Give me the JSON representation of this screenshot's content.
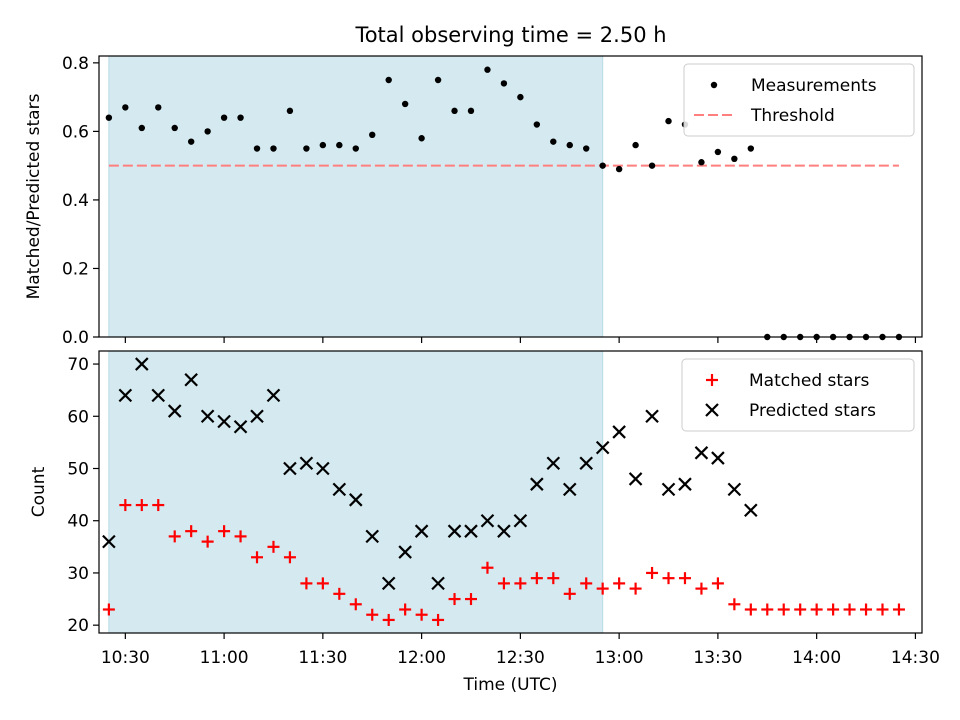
{
  "chart_data": [
    {
      "type": "scatter",
      "title": "Total observing time = 2.50 h",
      "ylabel": "Matched/Predicted stars",
      "xlabel": "",
      "xlim": [
        "10:22",
        "14:32"
      ],
      "ylim": [
        0,
        0.82
      ],
      "yticks": [
        0.0,
        0.2,
        0.4,
        0.6,
        0.8
      ],
      "ytick_labels": [
        "0.0",
        "0.2",
        "0.4",
        "0.6",
        "0.8"
      ],
      "shaded_span": [
        "10:25",
        "12:55"
      ],
      "shaded_color": "#d4eaf0",
      "legend_position": "upper right",
      "series": [
        {
          "name": "Measurements",
          "marker": "dot",
          "color": "#000000",
          "points": [
            [
              "10:25",
              0.64
            ],
            [
              "10:30",
              0.67
            ],
            [
              "10:35",
              0.61
            ],
            [
              "10:40",
              0.67
            ],
            [
              "10:45",
              0.61
            ],
            [
              "10:50",
              0.57
            ],
            [
              "10:55",
              0.6
            ],
            [
              "11:00",
              0.64
            ],
            [
              "11:05",
              0.64
            ],
            [
              "11:10",
              0.55
            ],
            [
              "11:15",
              0.55
            ],
            [
              "11:20",
              0.66
            ],
            [
              "11:25",
              0.55
            ],
            [
              "11:30",
              0.56
            ],
            [
              "11:35",
              0.56
            ],
            [
              "11:40",
              0.55
            ],
            [
              "11:45",
              0.59
            ],
            [
              "11:50",
              0.75
            ],
            [
              "11:55",
              0.68
            ],
            [
              "12:00",
              0.58
            ],
            [
              "12:05",
              0.75
            ],
            [
              "12:10",
              0.66
            ],
            [
              "12:15",
              0.66
            ],
            [
              "12:20",
              0.78
            ],
            [
              "12:25",
              0.74
            ],
            [
              "12:30",
              0.7
            ],
            [
              "12:35",
              0.62
            ],
            [
              "12:40",
              0.57
            ],
            [
              "12:45",
              0.56
            ],
            [
              "12:50",
              0.55
            ],
            [
              "12:55",
              0.5
            ],
            [
              "13:00",
              0.49
            ],
            [
              "13:05",
              0.56
            ],
            [
              "13:10",
              0.5
            ],
            [
              "13:15",
              0.63
            ],
            [
              "13:20",
              0.62
            ],
            [
              "13:25",
              0.51
            ],
            [
              "13:30",
              0.54
            ],
            [
              "13:35",
              0.52
            ],
            [
              "13:40",
              0.55
            ],
            [
              "13:45",
              0.0
            ],
            [
              "13:50",
              0.0
            ],
            [
              "13:55",
              0.0
            ],
            [
              "14:00",
              0.0
            ],
            [
              "14:05",
              0.0
            ],
            [
              "14:10",
              0.0
            ],
            [
              "14:15",
              0.0
            ],
            [
              "14:20",
              0.0
            ],
            [
              "14:25",
              0.0
            ]
          ]
        },
        {
          "name": "Threshold",
          "marker": "dashed-line",
          "color": "#ff7f7f",
          "points": [
            [
              "10:25",
              0.5
            ],
            [
              "14:25",
              0.5
            ]
          ]
        }
      ]
    },
    {
      "type": "scatter",
      "title": "",
      "xlabel": "Time (UTC)",
      "ylabel": "Count",
      "xlim": [
        "10:22",
        "14:32"
      ],
      "ylim": [
        18.5,
        72.5
      ],
      "xtick_labels": [
        "10:30",
        "11:00",
        "11:30",
        "12:00",
        "12:30",
        "13:00",
        "13:30",
        "14:00",
        "14:30"
      ],
      "yticks": [
        20,
        30,
        40,
        50,
        60,
        70
      ],
      "ytick_labels": [
        "20",
        "30",
        "40",
        "50",
        "60",
        "70"
      ],
      "shaded_span": [
        "10:25",
        "12:55"
      ],
      "shaded_color": "#d4eaf0",
      "legend_position": "upper right",
      "series": [
        {
          "name": "Matched stars",
          "marker": "plus",
          "color": "#ff0000",
          "points": [
            [
              "10:25",
              23
            ],
            [
              "10:30",
              43
            ],
            [
              "10:35",
              43
            ],
            [
              "10:40",
              43
            ],
            [
              "10:45",
              37
            ],
            [
              "10:50",
              38
            ],
            [
              "10:55",
              36
            ],
            [
              "11:00",
              38
            ],
            [
              "11:05",
              37
            ],
            [
              "11:10",
              33
            ],
            [
              "11:15",
              35
            ],
            [
              "11:20",
              33
            ],
            [
              "11:25",
              28
            ],
            [
              "11:30",
              28
            ],
            [
              "11:35",
              26
            ],
            [
              "11:40",
              24
            ],
            [
              "11:45",
              22
            ],
            [
              "11:50",
              21
            ],
            [
              "11:55",
              23
            ],
            [
              "12:00",
              22
            ],
            [
              "12:05",
              21
            ],
            [
              "12:10",
              25
            ],
            [
              "12:15",
              25
            ],
            [
              "12:20",
              31
            ],
            [
              "12:25",
              28
            ],
            [
              "12:30",
              28
            ],
            [
              "12:35",
              29
            ],
            [
              "12:40",
              29
            ],
            [
              "12:45",
              26
            ],
            [
              "12:50",
              28
            ],
            [
              "12:55",
              27
            ],
            [
              "13:00",
              28
            ],
            [
              "13:05",
              27
            ],
            [
              "13:10",
              30
            ],
            [
              "13:15",
              29
            ],
            [
              "13:20",
              29
            ],
            [
              "13:25",
              27
            ],
            [
              "13:30",
              28
            ],
            [
              "13:35",
              24
            ],
            [
              "13:40",
              23
            ],
            [
              "13:45",
              23
            ],
            [
              "13:50",
              23
            ],
            [
              "13:55",
              23
            ],
            [
              "14:00",
              23
            ],
            [
              "14:05",
              23
            ],
            [
              "14:10",
              23
            ],
            [
              "14:15",
              23
            ],
            [
              "14:20",
              23
            ],
            [
              "14:25",
              23
            ]
          ]
        },
        {
          "name": "Predicted stars",
          "marker": "x",
          "color": "#000000",
          "points": [
            [
              "10:25",
              36
            ],
            [
              "10:30",
              64
            ],
            [
              "10:35",
              70
            ],
            [
              "10:40",
              64
            ],
            [
              "10:45",
              61
            ],
            [
              "10:50",
              67
            ],
            [
              "10:55",
              60
            ],
            [
              "11:00",
              59
            ],
            [
              "11:05",
              58
            ],
            [
              "11:10",
              60
            ],
            [
              "11:15",
              64
            ],
            [
              "11:20",
              50
            ],
            [
              "11:25",
              51
            ],
            [
              "11:30",
              50
            ],
            [
              "11:35",
              46
            ],
            [
              "11:40",
              44
            ],
            [
              "11:45",
              37
            ],
            [
              "11:50",
              28
            ],
            [
              "11:55",
              34
            ],
            [
              "12:00",
              38
            ],
            [
              "12:05",
              28
            ],
            [
              "12:10",
              38
            ],
            [
              "12:15",
              38
            ],
            [
              "12:20",
              40
            ],
            [
              "12:25",
              38
            ],
            [
              "12:30",
              40
            ],
            [
              "12:35",
              47
            ],
            [
              "12:40",
              51
            ],
            [
              "12:45",
              46
            ],
            [
              "12:50",
              51
            ],
            [
              "12:55",
              54
            ],
            [
              "13:00",
              57
            ],
            [
              "13:05",
              48
            ],
            [
              "13:10",
              60
            ],
            [
              "13:15",
              46
            ],
            [
              "13:20",
              47
            ],
            [
              "13:25",
              53
            ],
            [
              "13:30",
              52
            ],
            [
              "13:35",
              46
            ],
            [
              "13:40",
              42
            ]
          ]
        }
      ]
    }
  ]
}
